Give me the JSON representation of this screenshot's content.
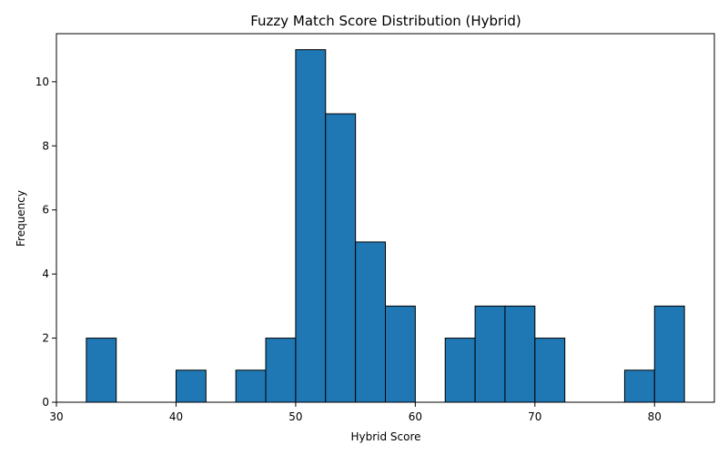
{
  "chart_data": {
    "type": "bar",
    "title": "Fuzzy Match Score Distribution (Hybrid)",
    "xlabel": "Hybrid Score",
    "ylabel": "Frequency",
    "bin_width": 2.5,
    "bins": [
      {
        "start": 32.5,
        "end": 35.0,
        "count": 2
      },
      {
        "start": 35.0,
        "end": 37.5,
        "count": 0
      },
      {
        "start": 37.5,
        "end": 40.0,
        "count": 0
      },
      {
        "start": 40.0,
        "end": 42.5,
        "count": 1
      },
      {
        "start": 42.5,
        "end": 45.0,
        "count": 0
      },
      {
        "start": 45.0,
        "end": 47.5,
        "count": 1
      },
      {
        "start": 47.5,
        "end": 50.0,
        "count": 2
      },
      {
        "start": 50.0,
        "end": 52.5,
        "count": 11
      },
      {
        "start": 52.5,
        "end": 55.0,
        "count": 9
      },
      {
        "start": 55.0,
        "end": 57.5,
        "count": 5
      },
      {
        "start": 57.5,
        "end": 60.0,
        "count": 3
      },
      {
        "start": 60.0,
        "end": 62.5,
        "count": 0
      },
      {
        "start": 62.5,
        "end": 65.0,
        "count": 2
      },
      {
        "start": 65.0,
        "end": 67.5,
        "count": 3
      },
      {
        "start": 67.5,
        "end": 70.0,
        "count": 3
      },
      {
        "start": 70.0,
        "end": 72.5,
        "count": 2
      },
      {
        "start": 72.5,
        "end": 75.0,
        "count": 0
      },
      {
        "start": 75.0,
        "end": 77.5,
        "count": 0
      },
      {
        "start": 77.5,
        "end": 80.0,
        "count": 1
      },
      {
        "start": 80.0,
        "end": 82.5,
        "count": 3
      }
    ],
    "xlim": [
      30,
      85
    ],
    "ylim": [
      0,
      11.5
    ],
    "xticks": [
      30,
      40,
      50,
      60,
      70,
      80
    ],
    "yticks": [
      0,
      2,
      4,
      6,
      8,
      10
    ],
    "grid": false,
    "colors": {
      "bar_fill": "#1f77b4",
      "bar_edge": "#000000",
      "axis": "#000000"
    }
  }
}
